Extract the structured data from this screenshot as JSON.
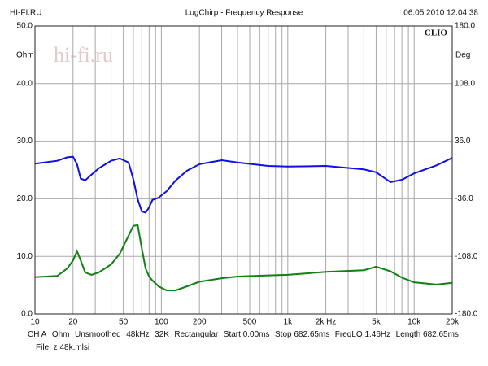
{
  "header": {
    "left": "HI-FI.RU",
    "title": "LogChirp - Frequency Response",
    "right": "06.05.2010 12.04.38"
  },
  "chart_data": {
    "type": "line",
    "brand": "CLIO",
    "watermark": "hi-fi.ru",
    "ylabel": "Ohm",
    "y2label": "Deg",
    "xscale": "log",
    "x": [
      10,
      15,
      18,
      20,
      21.5,
      23,
      25,
      28,
      32,
      40,
      47,
      55,
      60,
      65,
      70,
      75,
      80,
      85,
      95,
      110,
      130,
      160,
      200,
      300,
      400,
      700,
      1000,
      2000,
      4000,
      5000,
      6500,
      8000,
      10000,
      15000,
      20000
    ],
    "series": [
      {
        "color": "#1010e0",
        "values": [
          26.1,
          26.6,
          27.2,
          27.3,
          26,
          23.5,
          23.2,
          24.2,
          25.3,
          26.6,
          27,
          26.3,
          23.4,
          19.9,
          17.8,
          17.6,
          18.5,
          19.8,
          20.2,
          21.3,
          23.2,
          24.9,
          26,
          26.7,
          26.3,
          25.7,
          25.6,
          25.7,
          25.1,
          24.6,
          22.9,
          23.3,
          24.4,
          25.8,
          27.1
        ]
      },
      {
        "color": "#108010",
        "values": [
          6.4,
          6.6,
          7.9,
          9.3,
          10.9,
          9.3,
          7.2,
          6.8,
          7.2,
          8.6,
          10.5,
          13.6,
          15.3,
          15.4,
          11.4,
          7.9,
          6.5,
          5.8,
          4.8,
          4.1,
          4.1,
          4.8,
          5.6,
          6.2,
          6.5,
          6.7,
          6.8,
          7.3,
          7.6,
          8.2,
          7.4,
          6.3,
          5.5,
          5.1,
          5.4
        ]
      }
    ],
    "xlim": [
      10,
      20000
    ],
    "xticks": [
      10,
      20,
      50,
      100,
      200,
      500,
      {
        "value": 1000,
        "label": "1k"
      },
      {
        "value": 2000,
        "label": "2k Hz"
      },
      {
        "value": 5000,
        "label": "5k"
      },
      {
        "value": 10000,
        "label": "10k"
      },
      {
        "value": 20000,
        "label": "20k"
      }
    ],
    "x_minor_grid": [
      30,
      40,
      60,
      70,
      80,
      90,
      300,
      400,
      600,
      700,
      800,
      900,
      3000,
      4000,
      6000,
      7000,
      8000,
      9000
    ],
    "ylim": [
      0,
      50
    ],
    "yticks": [
      {
        "value": 0,
        "label": "0.0"
      },
      {
        "value": 10,
        "label": "10.0"
      },
      {
        "value": 20,
        "label": "20.0"
      },
      {
        "value": 30,
        "label": "30.0"
      },
      {
        "value": 40,
        "label": "40.0"
      },
      {
        "value": 50,
        "label": "50.0"
      }
    ],
    "y2lim": [
      -180,
      180
    ],
    "y2ticks": [
      {
        "value": -180,
        "label": "-180.0"
      },
      {
        "value": -108,
        "label": "-108.0"
      },
      {
        "value": -36,
        "label": "-36.0"
      },
      {
        "value": 36,
        "label": "36.0"
      },
      {
        "value": 108,
        "label": "108.0"
      },
      {
        "value": 180,
        "label": "180.0"
      }
    ],
    "grid": true
  },
  "footer": {
    "settings": [
      "CH A",
      "Ohm",
      "Unsmoothed",
      "48kHz",
      "32K",
      "Rectangular",
      "Start 0.00ms",
      "Stop 682.65ms",
      "FreqLO 1.46Hz",
      "Length 682.65ms"
    ],
    "file": "File: z 48k.mlsi"
  }
}
